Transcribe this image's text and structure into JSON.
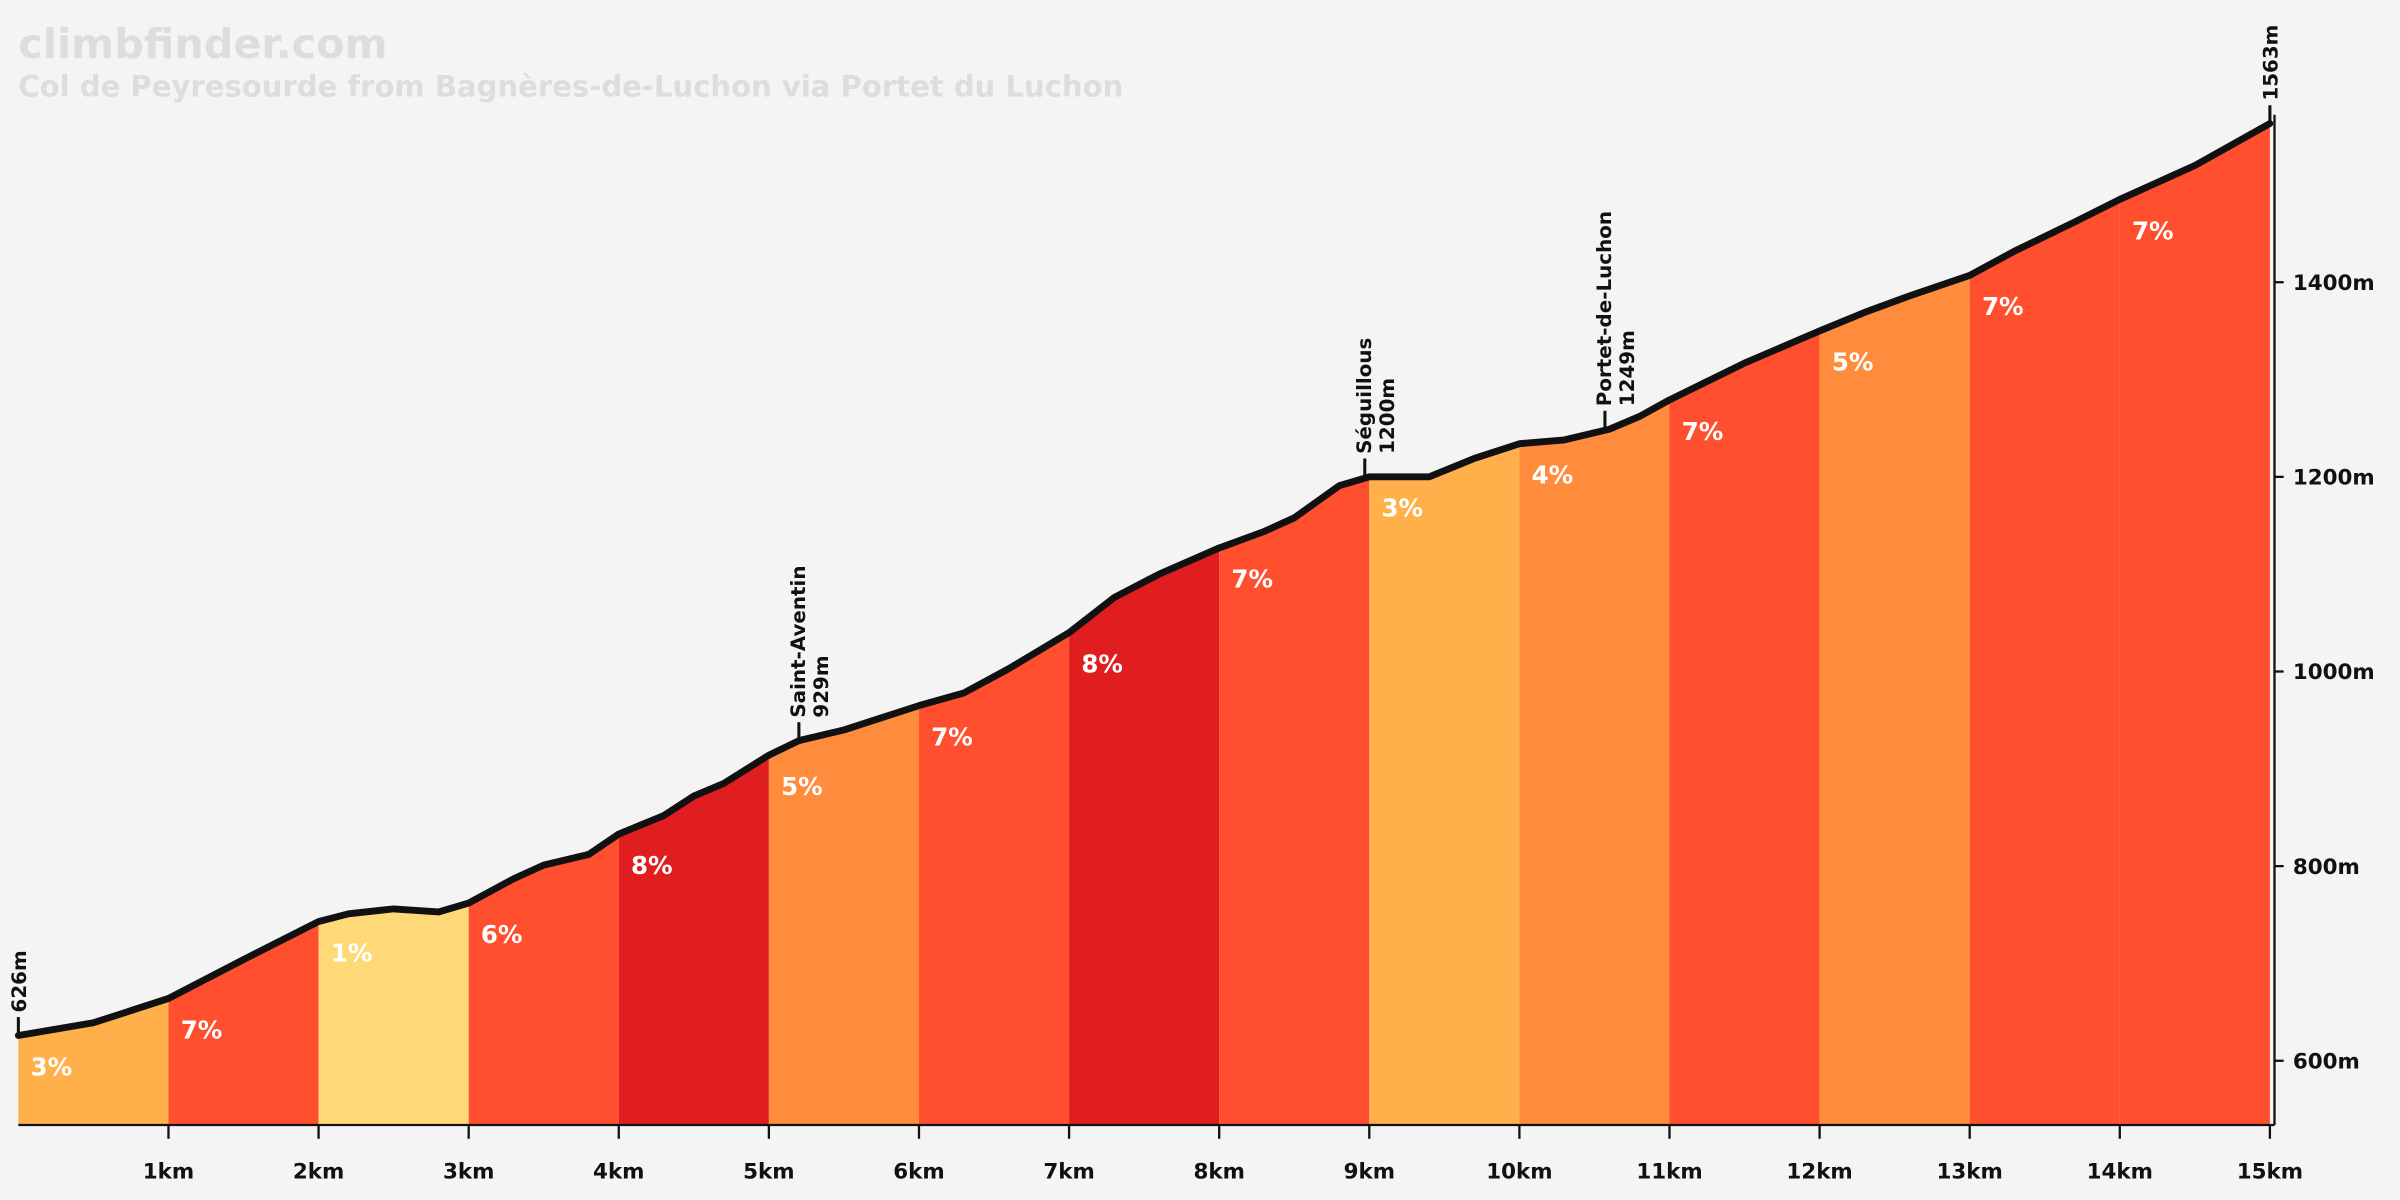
{
  "chart_data": {
    "type": "elevation-profile",
    "title": "climbfinder.com",
    "subtitle": "Col de Peyresourde from Bagnères-de-Luchon via Portet du Luchon",
    "x": [
      0,
      0.5,
      0.7,
      1.0,
      1.5,
      2.0,
      2.2,
      2.5,
      2.8,
      3.0,
      3.3,
      3.5,
      3.8,
      4.0,
      4.3,
      4.5,
      4.7,
      5.0,
      5.2,
      5.5,
      6.0,
      6.3,
      6.6,
      7.0,
      7.3,
      7.6,
      8.0,
      8.3,
      8.5,
      8.8,
      9.0,
      9.4,
      9.7,
      10.0,
      10.3,
      10.6,
      10.8,
      11.0,
      11.5,
      12.0,
      12.3,
      12.6,
      13.0,
      13.3,
      13.7,
      14.0,
      14.5,
      15.0
    ],
    "values": [
      626,
      639,
      649,
      664,
      704,
      743,
      751,
      756,
      753,
      762,
      787,
      801,
      812,
      833,
      852,
      872,
      885,
      914,
      929,
      940,
      965,
      978,
      1003,
      1040,
      1076,
      1100,
      1127,
      1144,
      1158,
      1191,
      1200,
      1200,
      1219,
      1234,
      1238,
      1249,
      1262,
      1279,
      1317,
      1350,
      1369,
      1386,
      1407,
      1432,
      1462,
      1485,
      1520,
      1563
    ],
    "line_color": "#111111",
    "segments": {
      "bins": [
        0,
        1,
        2,
        3,
        4,
        5,
        6,
        7,
        8,
        9,
        10,
        11,
        12,
        13,
        14,
        15
      ],
      "values": [
        3,
        7,
        1,
        6,
        8,
        5,
        7,
        8,
        7,
        3,
        4,
        7,
        5,
        7,
        7
      ],
      "value_labels": [
        "3%",
        "7%",
        "1%",
        "6%",
        "8%",
        "5%",
        "7%",
        "8%",
        "7%",
        "3%",
        "4%",
        "7%",
        "5%",
        "7%",
        "7%"
      ],
      "colors": [
        "#ffb04a",
        "#ff4f2e",
        "#ffd978",
        "#ff4f2e",
        "#e01e20",
        "#ff8c3c",
        "#ff4f2e",
        "#e01e20",
        "#ff4f2e",
        "#ffb04a",
        "#ff8c3c",
        "#ff4f2e",
        "#ff8c3c",
        "#ff4f2e",
        "#ff4f2e"
      ]
    },
    "waypoints": [
      {
        "x": 0,
        "value": 626,
        "label": "626m"
      },
      {
        "name": "Saint-Aventin",
        "x": 5.2,
        "value": 929,
        "label": "929m"
      },
      {
        "name": "Séguillous",
        "x": 8.97,
        "value": 1200,
        "label": "1200m"
      },
      {
        "name": "Portet-de-Luchon",
        "x": 10.57,
        "value": 1249,
        "label": "1249m"
      },
      {
        "x": 15,
        "value": 1563,
        "label": "1563m"
      }
    ],
    "xlim": [
      0,
      15
    ],
    "ylim": [
      534,
      1690
    ],
    "xticks": [
      {
        "value": 1,
        "label": "1km"
      },
      {
        "value": 2,
        "label": "2km"
      },
      {
        "value": 3,
        "label": "3km"
      },
      {
        "value": 4,
        "label": "4km"
      },
      {
        "value": 5,
        "label": "5km"
      },
      {
        "value": 6,
        "label": "6km"
      },
      {
        "value": 7,
        "label": "7km"
      },
      {
        "value": 8,
        "label": "8km"
      },
      {
        "value": 9,
        "label": "9km"
      },
      {
        "value": 10,
        "label": "10km"
      },
      {
        "value": 11,
        "label": "11km"
      },
      {
        "value": 12,
        "label": "12km"
      },
      {
        "value": 13,
        "label": "13km"
      },
      {
        "value": 14,
        "label": "14km"
      },
      {
        "value": 15,
        "label": "15km"
      }
    ],
    "yticks": [
      {
        "value": 600,
        "label": "600m"
      },
      {
        "value": 800,
        "label": "800m"
      },
      {
        "value": 1000,
        "label": "1000m"
      },
      {
        "value": 1200,
        "label": "1200m"
      },
      {
        "value": 1400,
        "label": "1400m"
      }
    ]
  }
}
